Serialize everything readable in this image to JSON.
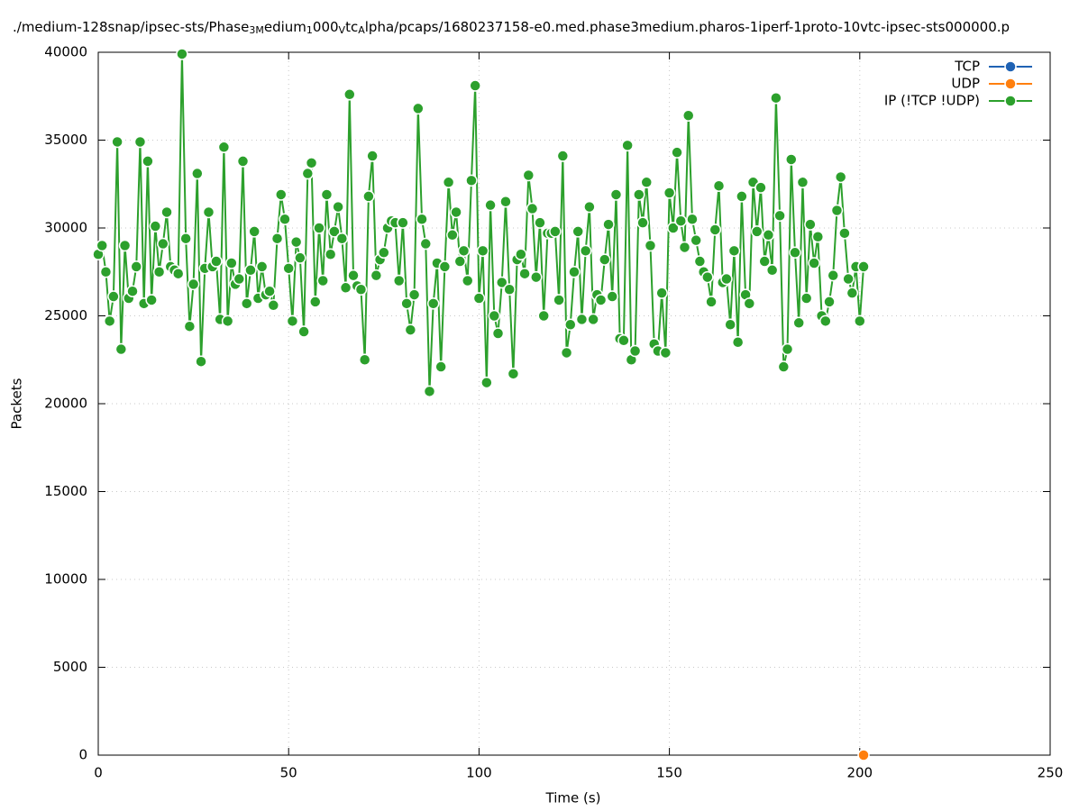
{
  "chart_data": {
    "type": "line",
    "title": [
      "./medium-128snap/ipsec-sts/Phase",
      "3M",
      "edium",
      "1",
      "000",
      "V",
      "tc",
      "A",
      "lpha/pcaps/1680237158-e0.med.phase3medium.pharos-1iperf-1proto-10vtc-ipsec-sts000000.p"
    ],
    "xlabel": "Time (s)",
    "ylabel": "Packets",
    "xlim": [
      0,
      250
    ],
    "xticks": [
      0,
      50,
      100,
      150,
      200,
      250
    ],
    "ylim": [
      0,
      40000
    ],
    "yticks": [
      0,
      5000,
      10000,
      15000,
      20000,
      25000,
      30000,
      35000,
      40000
    ],
    "grid": true,
    "legend": "top-right",
    "series": [
      {
        "name": "TCP",
        "color": "#1f62b4",
        "x": [],
        "values": []
      },
      {
        "name": "UDP",
        "color": "#ff7f0e",
        "x": [
          201
        ],
        "values": [
          0
        ]
      },
      {
        "name": "IP (!TCP  !UDP)",
        "color": "#2ca02c",
        "x": [
          0,
          1,
          2,
          3,
          4,
          5,
          6,
          7,
          8,
          9,
          10,
          11,
          12,
          13,
          14,
          15,
          16,
          17,
          18,
          19,
          20,
          21,
          22,
          23,
          24,
          25,
          26,
          27,
          28,
          29,
          30,
          31,
          32,
          33,
          34,
          35,
          36,
          37,
          38,
          39,
          40,
          41,
          42,
          43,
          44,
          45,
          46,
          47,
          48,
          49,
          50,
          51,
          52,
          53,
          54,
          55,
          56,
          57,
          58,
          59,
          60,
          61,
          62,
          63,
          64,
          65,
          66,
          67,
          68,
          69,
          70,
          71,
          72,
          73,
          74,
          75,
          76,
          77,
          78,
          79,
          80,
          81,
          82,
          83,
          84,
          85,
          86,
          87,
          88,
          89,
          90,
          91,
          92,
          93,
          94,
          95,
          96,
          97,
          98,
          99,
          100,
          101,
          102,
          103,
          104,
          105,
          106,
          107,
          108,
          109,
          110,
          111,
          112,
          113,
          114,
          115,
          116,
          117,
          118,
          119,
          120,
          121,
          122,
          123,
          124,
          125,
          126,
          127,
          128,
          129,
          130,
          131,
          132,
          133,
          134,
          135,
          136,
          137,
          138,
          139,
          140,
          141,
          142,
          143,
          144,
          145,
          146,
          147,
          148,
          149,
          150,
          151,
          152,
          153,
          154,
          155,
          156,
          157,
          158,
          159,
          160,
          161,
          162,
          163,
          164,
          165,
          166,
          167,
          168,
          169,
          170,
          171,
          172,
          173,
          174,
          175,
          176,
          177,
          178,
          179,
          180,
          181,
          182,
          183,
          184,
          185,
          186,
          187,
          188,
          189,
          190,
          191,
          192,
          193,
          194,
          195,
          196,
          197,
          198,
          199,
          200,
          201
        ],
        "values": [
          28500,
          29000,
          27500,
          24700,
          26100,
          34900,
          23100,
          29000,
          26000,
          26400,
          27800,
          34900,
          25700,
          33800,
          25900,
          30100,
          27500,
          29100,
          30900,
          27800,
          27600,
          27400,
          39900,
          29400,
          24400,
          26800,
          33100,
          22400,
          27700,
          30900,
          27800,
          28100,
          24800,
          34600,
          24700,
          28000,
          26800,
          27100,
          33800,
          25700,
          27600,
          29800,
          26000,
          27800,
          26200,
          26400,
          25600,
          29400,
          31900,
          30500,
          27700,
          24700,
          29200,
          28300,
          24100,
          33100,
          33700,
          25800,
          30000,
          27000,
          31900,
          28500,
          29800,
          31200,
          29400,
          26600,
          37600,
          27300,
          26700,
          26500,
          22500,
          31800,
          34100,
          27300,
          28200,
          28600,
          30000,
          30400,
          30300,
          27000,
          30300,
          25700,
          24200,
          26200,
          36800,
          30500,
          29100,
          20700,
          25700,
          28000,
          22100,
          27800,
          32600,
          29600,
          30900,
          28100,
          28700,
          27000,
          32700,
          38100,
          26000,
          28700,
          21200,
          31300,
          25000,
          24000,
          26900,
          31500,
          26500,
          21700,
          28200,
          28500,
          27400,
          33000,
          31100,
          27200,
          30300,
          25000,
          29700,
          29700,
          29800,
          25900,
          34100,
          22900,
          24500,
          27500,
          29800,
          24800,
          28700,
          31200,
          24800,
          26200,
          25900,
          28200,
          30200,
          26100,
          31900,
          23700,
          23600,
          34700,
          22500,
          23000,
          31900,
          30300,
          32600,
          29000,
          23400,
          23000,
          26300,
          22900,
          32000,
          30000,
          34300,
          30400,
          28900,
          36400,
          30500,
          29300,
          28100,
          27500,
          27200,
          25800,
          29900,
          32400,
          26900,
          27100,
          24500,
          28700,
          23500,
          31800,
          26200,
          25700,
          32600,
          29800,
          32300,
          28100,
          29600,
          27600,
          37400,
          30700,
          22100,
          23100,
          33900,
          28600,
          24600,
          32600,
          26000,
          30200,
          28000,
          29500,
          25000,
          24700,
          25800,
          27300,
          31000,
          32900,
          29700,
          27100,
          26300,
          27800,
          24700,
          27800
        ]
      }
    ]
  }
}
